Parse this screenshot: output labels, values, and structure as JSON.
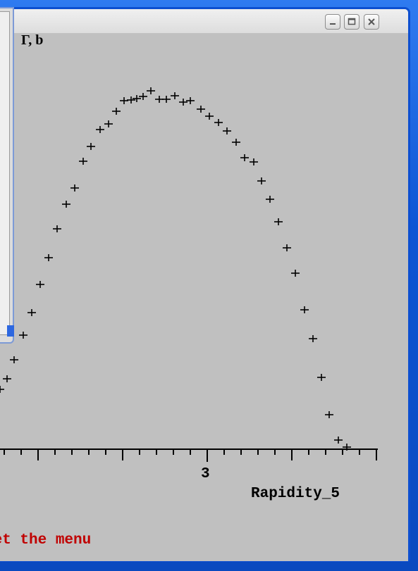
{
  "plot": {
    "title_fragment": "Γ, b",
    "x_axis_label": "Rapidity_5",
    "x_tick_label": "3"
  },
  "status_bar": {
    "message": "get the menu"
  },
  "window_controls": {
    "minimize": "minimize-icon",
    "maximize": "maximize-icon",
    "close": "close-icon"
  },
  "colors": {
    "desktop": "#0f57d6",
    "window_border": "#0d4fd0",
    "canvas": "#c0c0c0",
    "status_text": "#c00000"
  }
}
